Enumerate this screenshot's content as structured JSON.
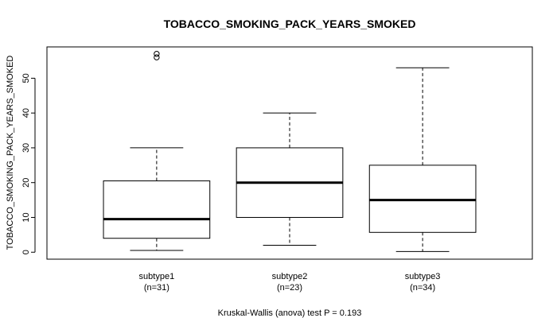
{
  "chart_data": {
    "type": "boxplot",
    "title": "TOBACCO_SMOKING_PACK_YEARS_SMOKED",
    "ylabel": "TOBACCO_SMOKING_PACK_YEARS_SMOKED",
    "xlabel": "",
    "ylim": [
      -2,
      59
    ],
    "yticks": [
      0,
      10,
      20,
      30,
      40,
      50
    ],
    "categories": [
      "subtype1",
      "subtype2",
      "subtype3"
    ],
    "counts": [
      "(n=31)",
      "(n=23)",
      "(n=34)"
    ],
    "boxes": [
      {
        "whisker_low": 0.5,
        "q1": 4,
        "median": 9.5,
        "q3": 20.5,
        "whisker_high": 30,
        "outliers": [
          56,
          57
        ]
      },
      {
        "whisker_low": 2,
        "q1": 10,
        "median": 20,
        "q3": 30,
        "whisker_high": 40,
        "outliers": []
      },
      {
        "whisker_low": 0.2,
        "q1": 5.7,
        "median": 15,
        "q3": 25,
        "whisker_high": 53,
        "outliers": []
      }
    ],
    "footer": "Kruskal-Wallis (anova) test P = 0.193",
    "grid": false
  }
}
